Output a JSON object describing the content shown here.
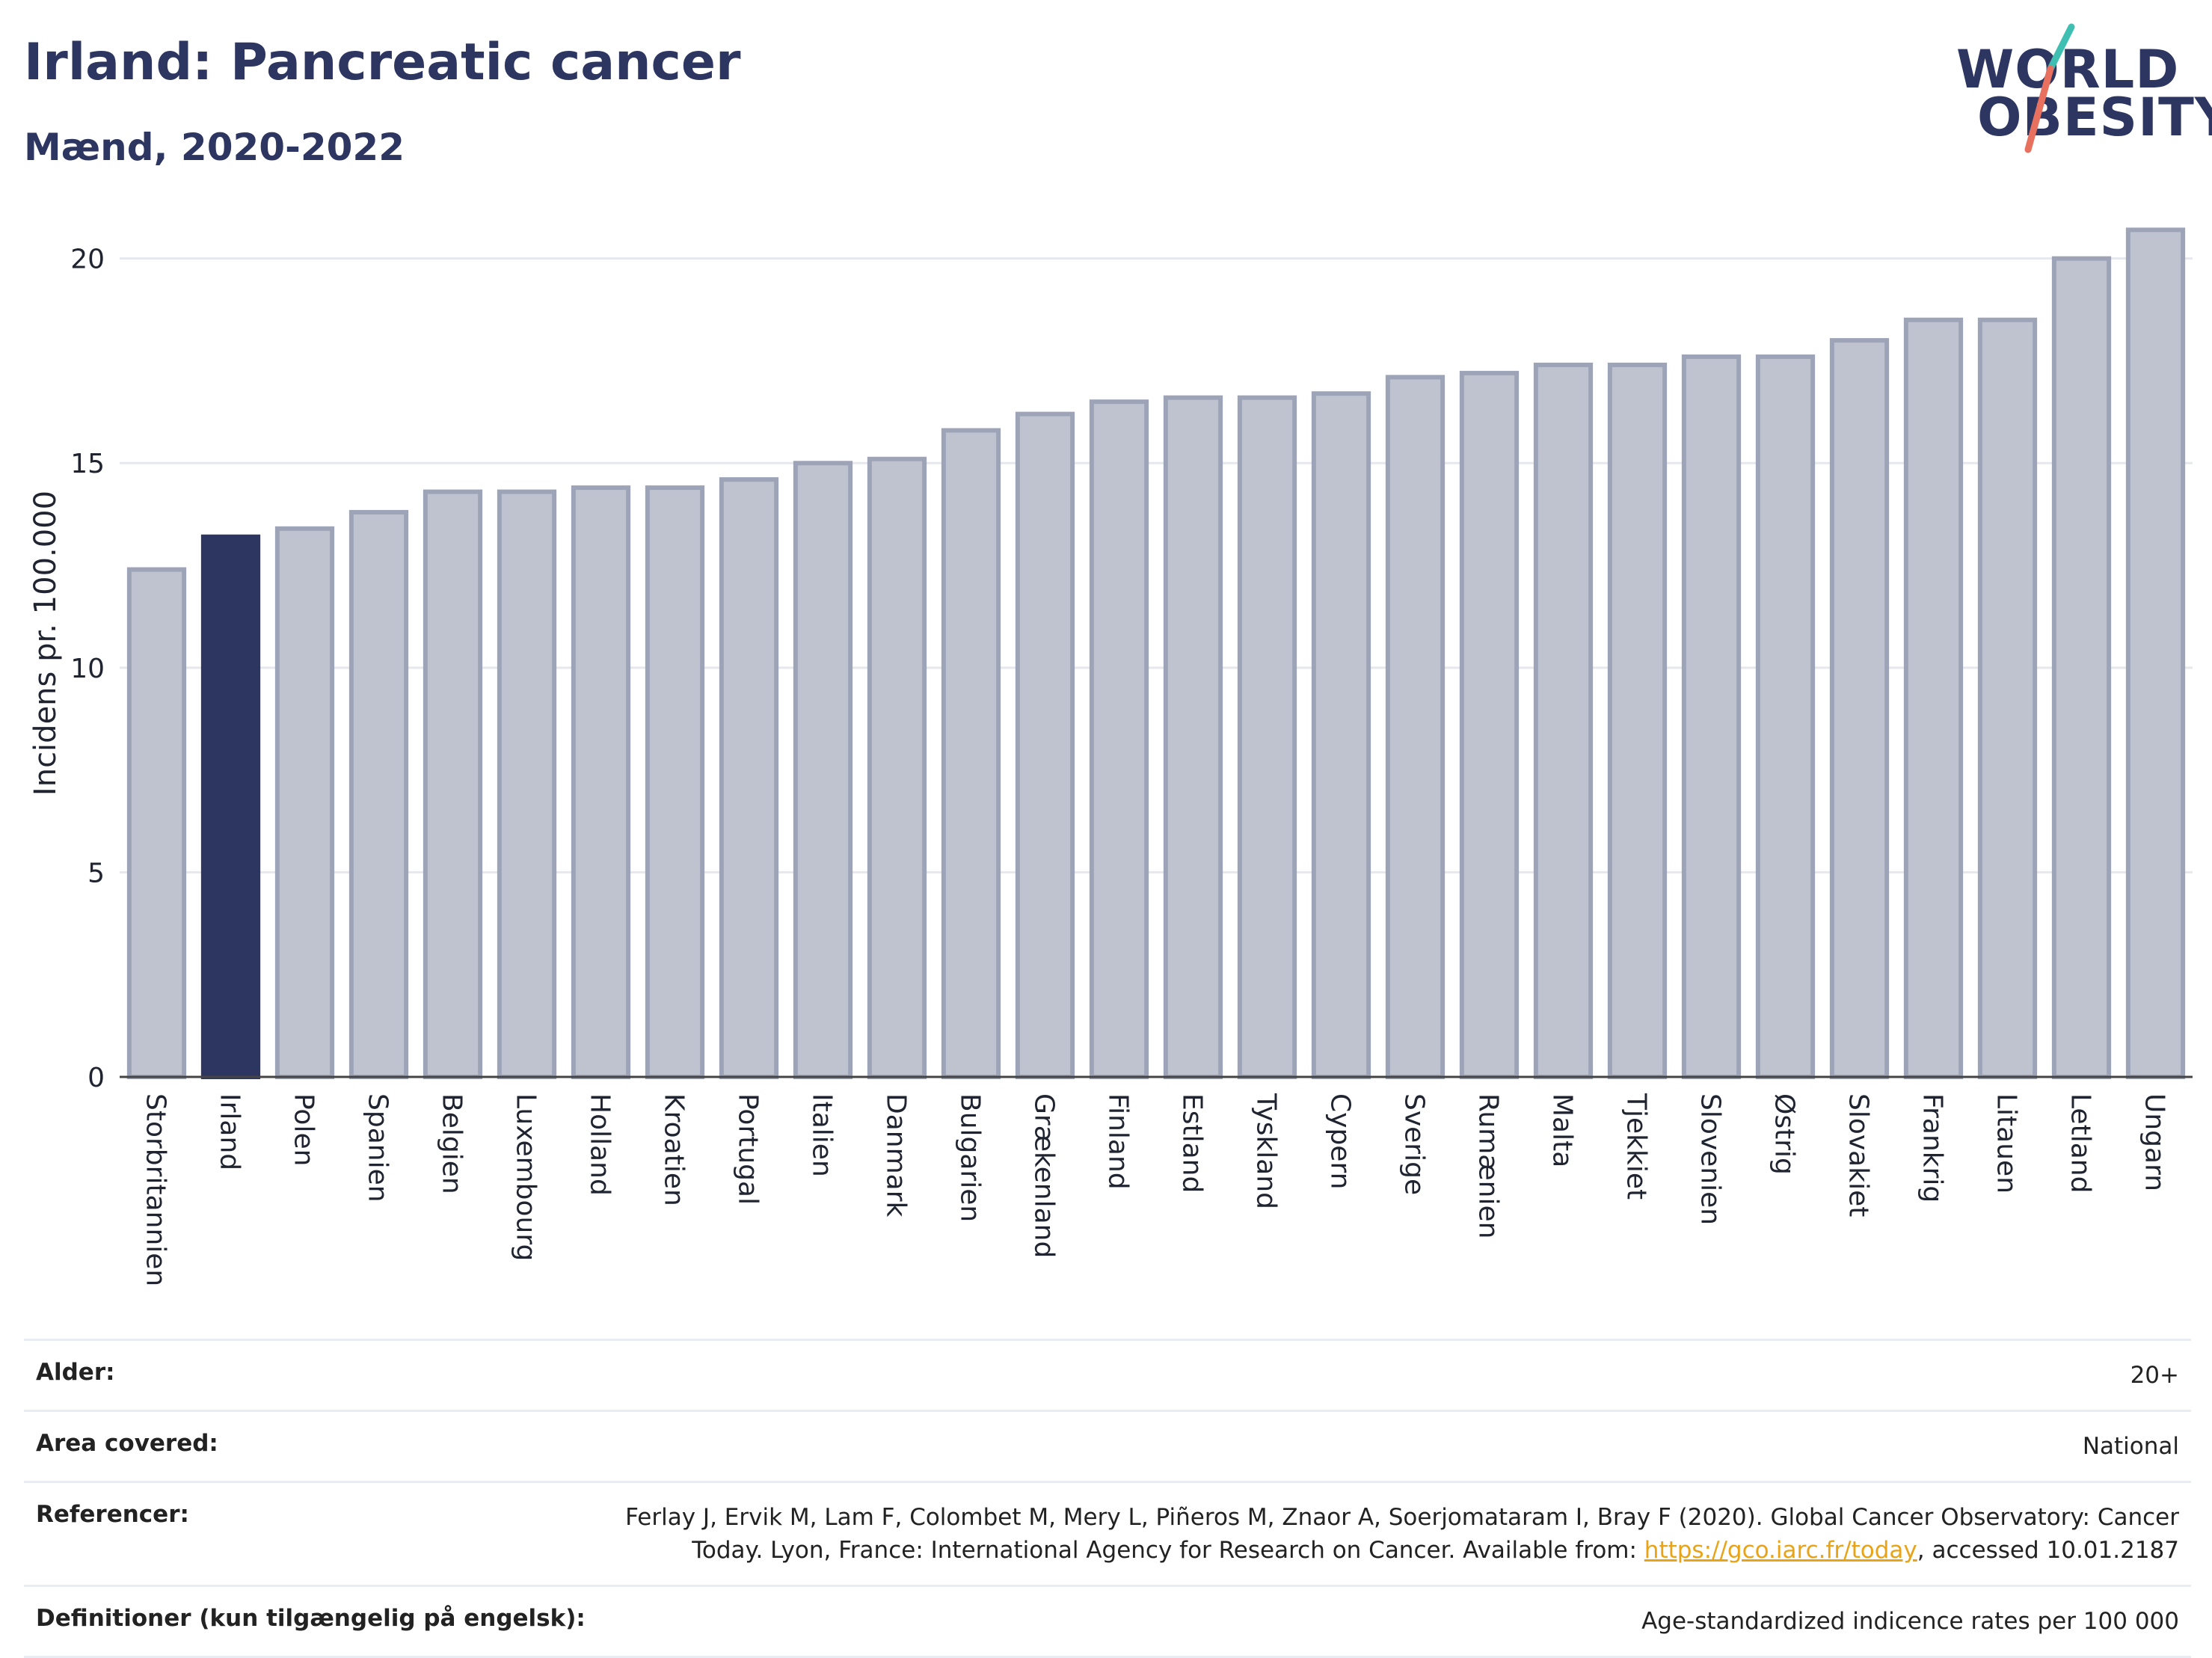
{
  "header": {
    "title": "Irland: Pancreatic cancer",
    "subtitle": "Mænd, 2020-2022"
  },
  "logo": {
    "line1": "WORLD",
    "line2": "OBESITY"
  },
  "colors": {
    "highlight": "#2d3561",
    "bar": "#bfc3d0",
    "bar_border": "#9ea4b8",
    "grid": "#e6e8ee",
    "logo_teal": "#3fbfb2",
    "logo_coral": "#e8705f"
  },
  "chart_data": {
    "type": "bar",
    "title": "Irland: Pancreatic cancer",
    "subtitle": "Mænd, 2020-2022",
    "xlabel": "",
    "ylabel": "Incidens pr. 100.000",
    "ylim": [
      0,
      21.2
    ],
    "yticks": [
      0,
      5,
      10,
      15,
      20
    ],
    "grid": true,
    "highlight": "Irland",
    "categories": [
      "Storbritannien",
      "Irland",
      "Polen",
      "Spanien",
      "Belgien",
      "Luxembourg",
      "Holland",
      "Kroatien",
      "Portugal",
      "Italien",
      "Danmark",
      "Bulgarien",
      "Grækenland",
      "Finland",
      "Estland",
      "Tyskland",
      "Cypern",
      "Sverige",
      "Rumænien",
      "Malta",
      "Tjekkiet",
      "Slovenien",
      "Østrig",
      "Slovakiet",
      "Frankrig",
      "Litauen",
      "Letland",
      "Ungarn"
    ],
    "values": [
      12.4,
      13.2,
      13.4,
      13.8,
      14.3,
      14.3,
      14.4,
      14.4,
      14.6,
      15.0,
      15.1,
      15.8,
      16.2,
      16.5,
      16.6,
      16.6,
      16.7,
      17.1,
      17.2,
      17.4,
      17.4,
      17.6,
      17.6,
      18.0,
      18.5,
      18.5,
      20.0,
      20.7
    ]
  },
  "info": {
    "rows": [
      {
        "label": "Alder:",
        "value": "20+"
      },
      {
        "label": "Area covered:",
        "value": "National"
      },
      {
        "label": "Referencer:",
        "value_pre": "Ferlay J, Ervik M, Lam F, Colombet M, Mery L, Piñeros M, Znaor A, Soerjomataram I, Bray F (2020). Global Cancer Observatory: Cancer Today. Lyon, France: International Agency for Research on Cancer. Available from: ",
        "link": "https://gco.iarc.fr/today",
        "value_post": ", accessed 10.01.2187"
      },
      {
        "label": "Definitioner (kun tilgængelig på engelsk):",
        "value": "Age-standardized indicence rates per 100 000"
      }
    ]
  }
}
